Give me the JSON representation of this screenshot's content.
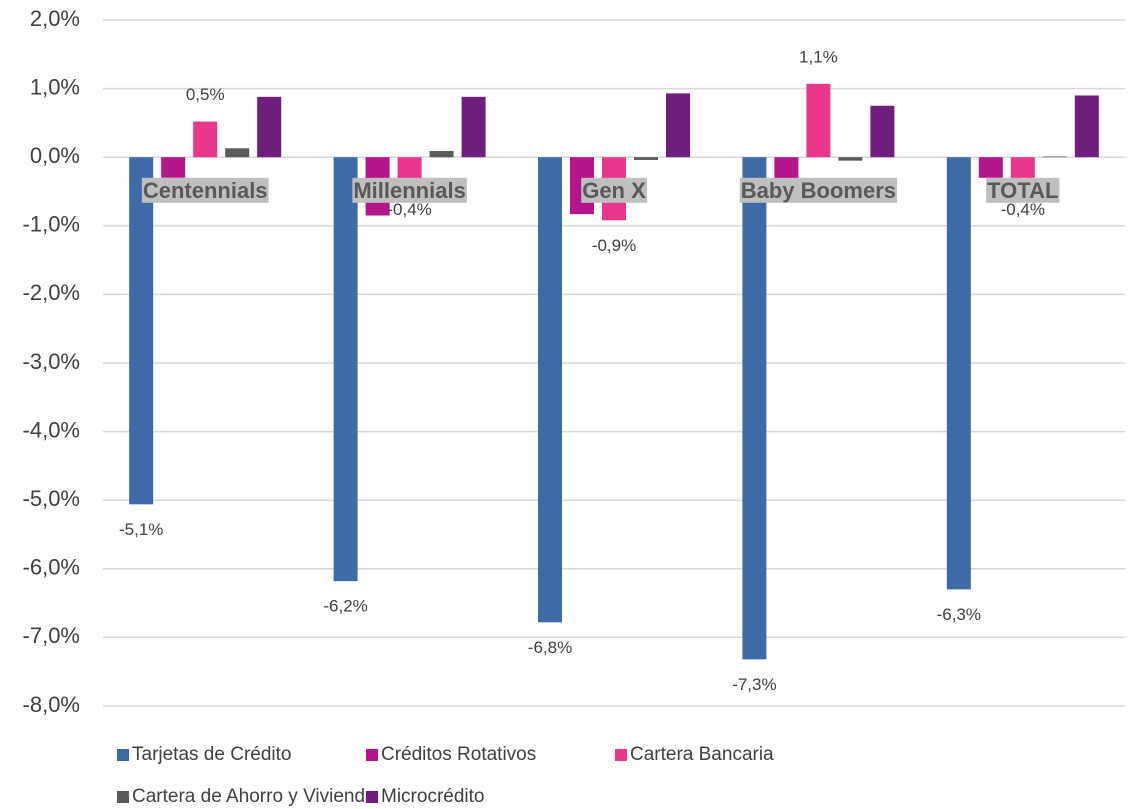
{
  "chart_data": {
    "type": "bar",
    "categories": [
      "Centennials",
      "Millennials",
      "Gen X",
      "Baby Boomers",
      "TOTAL"
    ],
    "series": [
      {
        "name": "Tarjetas de Crédito",
        "color": "#3f6aa8",
        "values": [
          -5.06,
          -6.18,
          -6.78,
          -7.32,
          -6.3
        ],
        "value_labels": [
          "-5,1%",
          "-6,2%",
          "-6,8%",
          "-7,3%",
          "-6,3%"
        ]
      },
      {
        "name": "Créditos Rotativos",
        "color": "#b3168a",
        "values": [
          -0.3,
          -0.85,
          -0.83,
          -0.5,
          -0.3
        ]
      },
      {
        "name": "Cartera Bancaria",
        "color": "#e8378c",
        "values": [
          0.52,
          -0.4,
          -0.92,
          1.07,
          -0.4
        ],
        "value_labels": [
          "0,5%",
          "-0,4%",
          "-0,9%",
          "1,1%",
          "-0,4%"
        ]
      },
      {
        "name": "Cartera de Ahorro y Vivienda",
        "color": "#5a5a5a",
        "values": [
          0.13,
          0.09,
          -0.04,
          -0.05,
          0.01
        ]
      },
      {
        "name": "Microcrédito",
        "color": "#6e1f7c",
        "values": [
          0.88,
          0.88,
          0.93,
          0.75,
          0.9
        ]
      }
    ],
    "ylim": [
      -8,
      2
    ],
    "yticks": [
      {
        "value": -8,
        "label": "-8,0%"
      },
      {
        "value": -7,
        "label": "-7,0%"
      },
      {
        "value": -6,
        "label": "-6,0%"
      },
      {
        "value": -5,
        "label": "-5,0%"
      },
      {
        "value": -4,
        "label": "-4,0%"
      },
      {
        "value": -3,
        "label": "-3,0%"
      },
      {
        "value": -2,
        "label": "-2,0%"
      },
      {
        "value": -1,
        "label": "-1,0%"
      },
      {
        "value": 0,
        "label": "0,0%"
      },
      {
        "value": 1,
        "label": "1,0%"
      },
      {
        "value": 2,
        "label": "2,0%"
      }
    ],
    "grid": true,
    "legend": "bottom"
  }
}
